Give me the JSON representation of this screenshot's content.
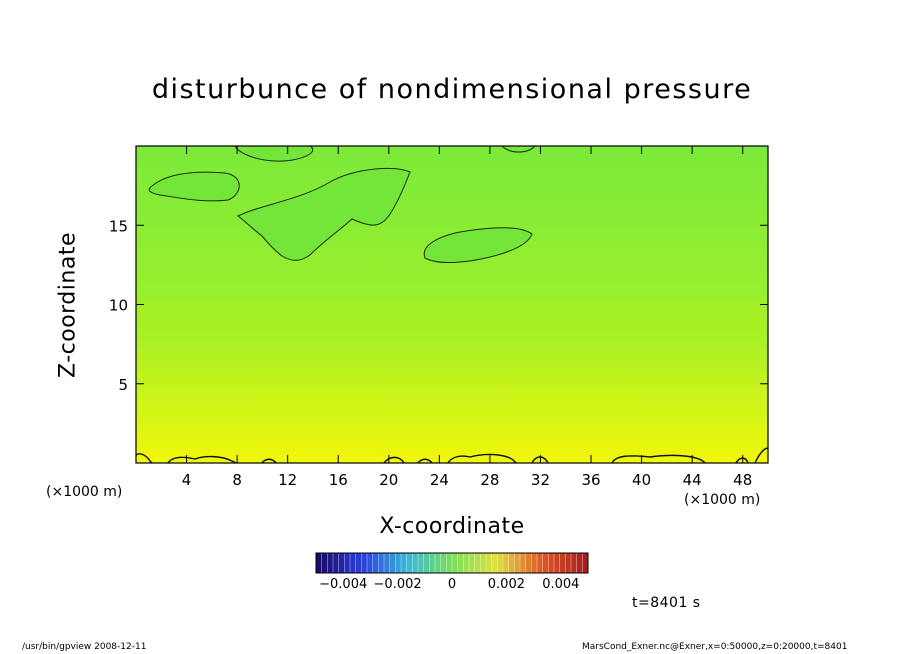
{
  "chart_data": {
    "type": "heatmap",
    "title": "disturbunce of nondimensional pressure",
    "xlabel": "X-coordinate",
    "ylabel": "Z-coordinate",
    "x_unit": "(×1000 m)",
    "y_unit": "(×1000 m)",
    "xlim": [
      0,
      50
    ],
    "ylim": [
      0,
      20
    ],
    "x_ticks": [
      4,
      8,
      12,
      16,
      20,
      24,
      28,
      32,
      36,
      40,
      44,
      48
    ],
    "y_ticks": [
      5,
      10,
      15
    ],
    "colorbar": {
      "range": [
        -0.005,
        0.005
      ],
      "ticks": [
        {
          "value": -0.004,
          "label": "−0.004"
        },
        {
          "value": -0.002,
          "label": "−0.002"
        },
        {
          "value": 0,
          "label": "0"
        },
        {
          "value": 0.002,
          "label": "0.002"
        },
        {
          "value": 0.004,
          "label": "0.004"
        }
      ],
      "colors": [
        "#1a0a6b",
        "#2b3fe0",
        "#39b8d9",
        "#7be05a",
        "#e0e040",
        "#e05a2a",
        "#a81e1e"
      ]
    },
    "field_colors": {
      "top": "#7bea3a",
      "middle": "#9ef02a",
      "bottom": "#f2f70a"
    },
    "annotation": "t=8401 s",
    "grid": false
  },
  "footer": {
    "left": "/usr/bin/gpview   2008-12-11",
    "right": "MarsCond_Exner.nc@Exner,x=0:50000,z=0:20000,t=8401"
  }
}
